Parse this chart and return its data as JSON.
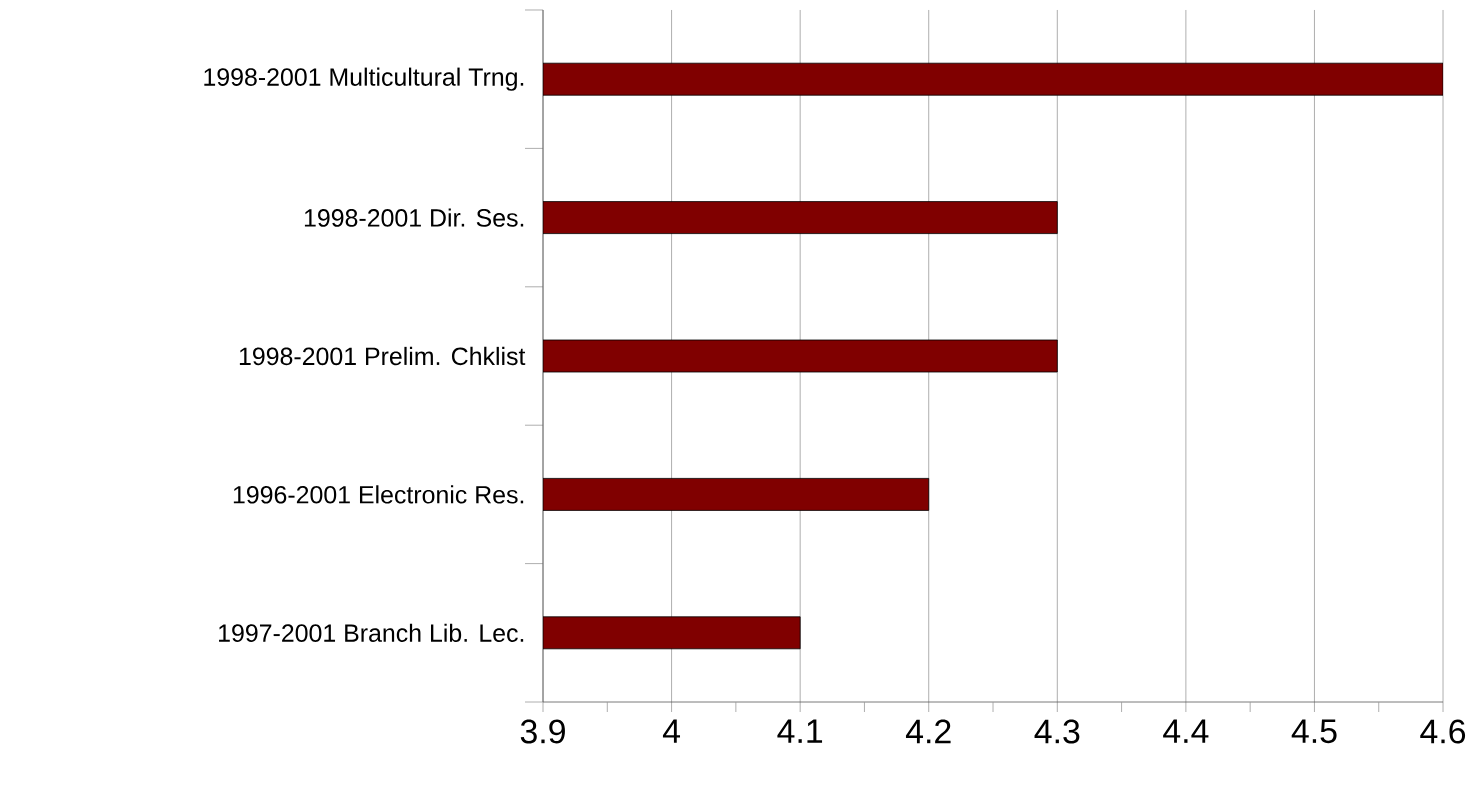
{
  "chart_data": {
    "type": "bar",
    "orientation": "horizontal",
    "categories": [
      "1998-2001 Multicultural Trng.",
      "1998-2001 Dir. Ses.",
      "1998-2001 Prelim. Chklist",
      "1996-2001 Electronic Res.",
      "1997-2001 Branch Lib. Lec."
    ],
    "values": [
      4.6,
      4.3,
      4.3,
      4.2,
      4.1
    ],
    "color": "#800000",
    "xlim": [
      3.9,
      4.6
    ],
    "xticks": [
      3.9,
      {
        "value": 3.95,
        "label": null
      },
      4,
      {
        "value": 4.05,
        "label": null
      },
      4.1,
      {
        "value": 4.15,
        "label": null
      },
      4.2,
      {
        "value": 4.25,
        "label": null
      },
      4.3,
      {
        "value": 4.35,
        "label": null
      },
      4.4,
      {
        "value": 4.45,
        "label": null
      },
      4.5,
      {
        "value": 4.55,
        "label": null
      },
      4.6
    ],
    "grid": "x"
  }
}
